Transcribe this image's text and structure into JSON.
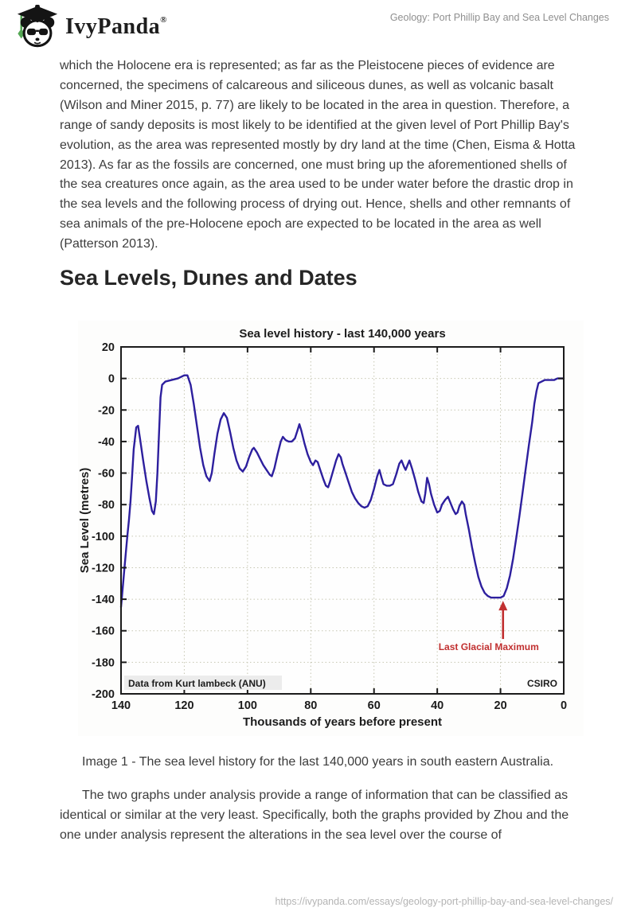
{
  "header": {
    "brand": "IvyPanda",
    "registered": "®",
    "doc_title": "Geology: Port Phillip Bay and Sea Level Changes"
  },
  "content": {
    "paragraph1": "which the Holocene era is represented; as far as the Pleistocene pieces of evidence are concerned, the specimens of calcareous and siliceous dunes, as well as volcanic basalt (Wilson and Miner 2015, p. 77) are likely to be located in the area in question. Therefore, a range of sandy deposits is most likely to be identified at the given level of Port Phillip Bay's evolution, as the area was represented mostly by dry land at the time (Chen, Eisma & Hotta 2013). As far as the fossils are concerned, one must bring up the aforementioned shells of the sea creatures once again, as the area used to be under water before the drastic drop in the sea levels and the following process of drying out. Hence, shells and other remnants of sea animals of the pre-Holocene epoch are expected to be located in the area as well (Patterson 2013).",
    "section_heading": "Sea Levels, Dunes and Dates",
    "caption": "Image 1 - The sea level history for the last 140,000 years in south eastern Australia.",
    "paragraph2": "The two graphs under analysis provide a range of information that can be classified as identical or similar at the very least. Specifically, both the graphs provided by Zhou and the one under analysis represent the alterations in the sea level over the course of"
  },
  "footer": {
    "url": "https://ivypanda.com/essays/geology-port-phillip-bay-and-sea-level-changes/"
  },
  "chart_data": {
    "type": "line",
    "title": "Sea level history - last 140,000 years",
    "xlabel": "Thousands of years before present",
    "ylabel": "Sea Level (metres)",
    "x_ticks": [
      140,
      120,
      100,
      80,
      60,
      40,
      20,
      0
    ],
    "y_ticks": [
      20,
      0,
      -20,
      -40,
      -60,
      -80,
      -100,
      -120,
      -140,
      -160,
      -180,
      -200
    ],
    "xlim": [
      140,
      0
    ],
    "ylim": [
      -200,
      20
    ],
    "grid": true,
    "grid_color": "#c6c6b2",
    "line_color": "#2d1f9e",
    "annotation_color": "#c13030",
    "credit_left": "Data from Kurt lambeck (ANU)",
    "credit_right": "CSIRO",
    "annotation": {
      "text": "Last Glacial Maximum",
      "x_kyr": 19.2,
      "tip_m": -141
    },
    "series": [
      {
        "name": "Sea level (metres)",
        "points": [
          [
            140,
            -145
          ],
          [
            139,
            -122
          ],
          [
            138,
            -100
          ],
          [
            137.5,
            -90
          ],
          [
            137,
            -78
          ],
          [
            136.5,
            -62
          ],
          [
            136,
            -45
          ],
          [
            135.2,
            -31
          ],
          [
            134.6,
            -30
          ],
          [
            134,
            -38
          ],
          [
            133,
            -52
          ],
          [
            132,
            -65
          ],
          [
            131,
            -76
          ],
          [
            130.2,
            -84
          ],
          [
            129.6,
            -86
          ],
          [
            129,
            -78
          ],
          [
            128.5,
            -60
          ],
          [
            128,
            -35
          ],
          [
            127.5,
            -12
          ],
          [
            127,
            -4
          ],
          [
            126,
            -2
          ],
          [
            124,
            -1
          ],
          [
            122,
            0
          ],
          [
            120,
            2
          ],
          [
            119,
            2
          ],
          [
            118,
            -4
          ],
          [
            117,
            -16
          ],
          [
            116,
            -30
          ],
          [
            115,
            -44
          ],
          [
            114,
            -55
          ],
          [
            113,
            -62
          ],
          [
            112,
            -65
          ],
          [
            111.3,
            -60
          ],
          [
            110.5,
            -48
          ],
          [
            109.5,
            -35
          ],
          [
            108.5,
            -26
          ],
          [
            107.5,
            -22
          ],
          [
            106.5,
            -25
          ],
          [
            105.5,
            -34
          ],
          [
            104.5,
            -44
          ],
          [
            103.5,
            -52
          ],
          [
            102.5,
            -57
          ],
          [
            101.5,
            -59
          ],
          [
            100.5,
            -56
          ],
          [
            99.5,
            -50
          ],
          [
            98.5,
            -45
          ],
          [
            98,
            -44
          ],
          [
            97,
            -47
          ],
          [
            96,
            -51
          ],
          [
            95,
            -55
          ],
          [
            94,
            -58
          ],
          [
            93,
            -61
          ],
          [
            92.3,
            -62
          ],
          [
            91.5,
            -57
          ],
          [
            90.5,
            -48
          ],
          [
            89.5,
            -40
          ],
          [
            88.8,
            -37
          ],
          [
            88,
            -39
          ],
          [
            87,
            -40
          ],
          [
            86,
            -40
          ],
          [
            85,
            -38
          ],
          [
            84.2,
            -33
          ],
          [
            83.6,
            -29
          ],
          [
            83,
            -33
          ],
          [
            82,
            -41
          ],
          [
            81,
            -48
          ],
          [
            80,
            -53
          ],
          [
            79.3,
            -55
          ],
          [
            78.5,
            -52
          ],
          [
            77.8,
            -53
          ],
          [
            77,
            -58
          ],
          [
            76,
            -64
          ],
          [
            75.2,
            -68
          ],
          [
            74.5,
            -69
          ],
          [
            74,
            -66
          ],
          [
            73,
            -59
          ],
          [
            72,
            -52
          ],
          [
            71.2,
            -48
          ],
          [
            70.5,
            -50
          ],
          [
            70,
            -54
          ],
          [
            69,
            -60
          ],
          [
            68,
            -66
          ],
          [
            67,
            -72
          ],
          [
            66,
            -76
          ],
          [
            65,
            -79
          ],
          [
            64,
            -81
          ],
          [
            63,
            -82
          ],
          [
            62,
            -81
          ],
          [
            61,
            -77
          ],
          [
            60,
            -70
          ],
          [
            59,
            -62
          ],
          [
            58.3,
            -58
          ],
          [
            57.6,
            -63
          ],
          [
            57,
            -67
          ],
          [
            56,
            -68
          ],
          [
            55,
            -68
          ],
          [
            54,
            -67
          ],
          [
            53,
            -61
          ],
          [
            52,
            -54
          ],
          [
            51.3,
            -52
          ],
          [
            50.5,
            -56
          ],
          [
            50,
            -58
          ],
          [
            49.4,
            -55
          ],
          [
            48.8,
            -52
          ],
          [
            48,
            -57
          ],
          [
            47,
            -64
          ],
          [
            46,
            -72
          ],
          [
            45,
            -78
          ],
          [
            44.3,
            -79
          ],
          [
            43.8,
            -73
          ],
          [
            43.2,
            -63
          ],
          [
            42.6,
            -67
          ],
          [
            42,
            -73
          ],
          [
            41,
            -80
          ],
          [
            40,
            -85
          ],
          [
            39.2,
            -84
          ],
          [
            38.5,
            -80
          ],
          [
            37.5,
            -77
          ],
          [
            36.6,
            -75
          ],
          [
            36,
            -78
          ],
          [
            35,
            -83
          ],
          [
            34.2,
            -86
          ],
          [
            33.6,
            -85
          ],
          [
            33,
            -81
          ],
          [
            32.2,
            -78
          ],
          [
            31.5,
            -80
          ],
          [
            31,
            -86
          ],
          [
            30,
            -96
          ],
          [
            29,
            -107
          ],
          [
            28,
            -117
          ],
          [
            27,
            -126
          ],
          [
            26,
            -132
          ],
          [
            25,
            -136
          ],
          [
            24,
            -138
          ],
          [
            23,
            -139
          ],
          [
            21,
            -139
          ],
          [
            20,
            -139
          ],
          [
            19,
            -138
          ],
          [
            18,
            -133
          ],
          [
            17,
            -125
          ],
          [
            16,
            -114
          ],
          [
            15,
            -101
          ],
          [
            14,
            -87
          ],
          [
            13,
            -72
          ],
          [
            12,
            -57
          ],
          [
            11,
            -42
          ],
          [
            10,
            -28
          ],
          [
            9.3,
            -16
          ],
          [
            8.6,
            -8
          ],
          [
            8,
            -3
          ],
          [
            7,
            -2
          ],
          [
            6,
            -1
          ],
          [
            5,
            -1
          ],
          [
            4,
            -1
          ],
          [
            3,
            -1
          ],
          [
            2,
            0
          ],
          [
            1,
            0
          ],
          [
            0,
            0
          ]
        ]
      }
    ]
  }
}
